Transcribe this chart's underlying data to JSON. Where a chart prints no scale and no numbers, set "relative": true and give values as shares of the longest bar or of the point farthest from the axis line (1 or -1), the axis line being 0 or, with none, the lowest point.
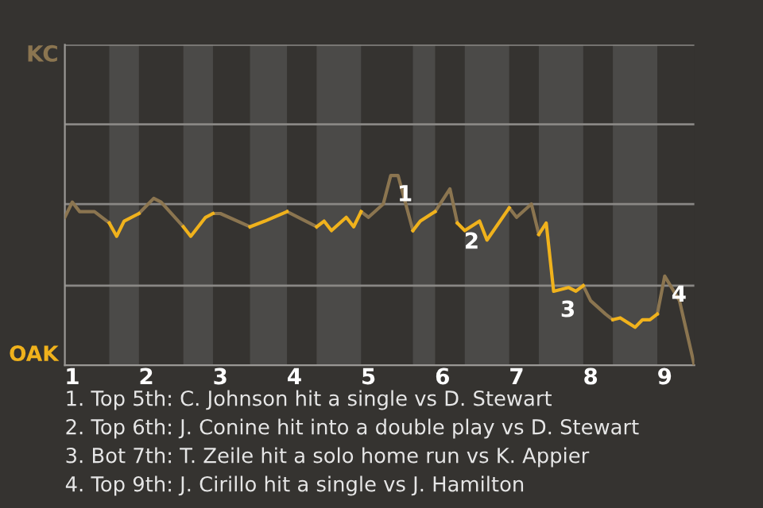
{
  "chart_data": {
    "type": "line",
    "relative": true,
    "series": [
      {
        "color": "#8b7550",
        "x": [
          0.9,
          1.0,
          1.1,
          1.3,
          1.5,
          null,
          1.9,
          2.1,
          2.2,
          2.5,
          null,
          2.9,
          3.0,
          3.4,
          null,
          3.9,
          4.3,
          null,
          4.9,
          5.0,
          5.2,
          5.3,
          5.4,
          5.6,
          null,
          5.9,
          6.1,
          6.2,
          null,
          6.9,
          7.0,
          7.2,
          7.3,
          null,
          7.9,
          8.0,
          8.2,
          8.3,
          null,
          8.9,
          9.0,
          9.2,
          9.4
        ],
        "values": [
          0.78,
          0.86,
          0.81,
          0.81,
          0.75,
          null,
          0.8,
          0.88,
          0.86,
          0.73,
          null,
          0.8,
          0.8,
          0.73,
          null,
          0.81,
          0.73,
          null,
          0.81,
          0.78,
          0.85,
          1,
          1,
          0.71,
          null,
          0.81,
          0.93,
          0.75,
          null,
          0.83,
          0.78,
          0.85,
          0.69,
          null,
          0.42,
          0.34,
          0.27,
          0.24,
          null,
          0.27,
          0.47,
          0.34,
          0
        ]
      },
      {
        "color": "#f0b21c",
        "x": [
          1.5,
          1.6,
          1.7,
          1.9,
          null,
          2.5,
          2.6,
          2.8,
          2.9,
          null,
          3.4,
          3.6,
          3.9,
          null,
          4.3,
          4.4,
          4.5,
          4.7,
          4.8,
          4.9,
          null,
          5.6,
          5.7,
          5.9,
          null,
          6.2,
          6.3,
          6.5,
          6.6,
          6.9,
          null,
          7.3,
          7.4,
          7.5,
          7.5,
          7.7,
          7.8,
          7.9,
          null,
          8.3,
          8.4,
          8.6,
          8.7,
          8.8,
          8.9
        ],
        "values": [
          0.75,
          0.68,
          0.76,
          0.8,
          null,
          0.73,
          0.68,
          0.78,
          0.8,
          null,
          0.73,
          0.76,
          0.81,
          null,
          0.73,
          0.76,
          0.71,
          0.78,
          0.73,
          0.81,
          null,
          0.71,
          0.76,
          0.81,
          null,
          0.75,
          0.71,
          0.76,
          0.66,
          0.83,
          null,
          0.69,
          0.75,
          0.39,
          0.39,
          0.41,
          0.39,
          0.42,
          null,
          0.24,
          0.25,
          0.2,
          0.24,
          0.24,
          0.27
        ]
      }
    ],
    "xlim": [
      0.9,
      9.4
    ],
    "xticks": [
      1,
      2,
      3,
      4,
      5,
      6,
      7,
      8,
      9
    ],
    "ref_lines": [
      {
        "axis": "y",
        "value": 0.42,
        "color": "#8a8885"
      },
      {
        "axis": "y",
        "value": 0.85,
        "color": "#8a8885"
      },
      {
        "axis": "y",
        "value": 1.27,
        "color": "#8a8885"
      },
      {
        "axis": "y",
        "value": 1.69,
        "color": "#8a8885"
      }
    ],
    "bands": [
      {
        "axis": "x",
        "from": 1.5,
        "to": 1.9,
        "color": "#4b4a48"
      },
      {
        "axis": "x",
        "from": 2.5,
        "to": 2.9,
        "color": "#4b4a48"
      },
      {
        "axis": "x",
        "from": 3.4,
        "to": 3.9,
        "color": "#4b4a48"
      },
      {
        "axis": "x",
        "from": 4.3,
        "to": 4.9,
        "color": "#4b4a48"
      },
      {
        "axis": "x",
        "from": 5.6,
        "to": 5.9,
        "color": "#4b4a48"
      },
      {
        "axis": "x",
        "from": 6.3,
        "to": 6.9,
        "color": "#4b4a48"
      },
      {
        "axis": "x",
        "from": 7.3,
        "to": 7.9,
        "color": "#4b4a48"
      },
      {
        "axis": "x",
        "from": 8.3,
        "to": 8.9,
        "color": "#4b4a48"
      }
    ],
    "annotations": [
      {
        "text": "1",
        "x": 5.3,
        "y": 1
      },
      {
        "text": "2",
        "x": 6.2,
        "y": 0.75
      },
      {
        "text": "3",
        "x": 7.5,
        "y": 0.39
      },
      {
        "text": "4",
        "x": 9.0,
        "y": 0.47
      },
      "KC",
      "OAK",
      "1. Top 5th: C. Johnson hit a single vs D. Stewart",
      "2. Top 6th: J. Conine hit into a double play vs D. Stewart",
      "3. Bot 7th: T. Zeile hit a solo home run vs K. Appier",
      "4. Top 9th: J. Cirillo hit a single vs J. Hamilton"
    ]
  }
}
